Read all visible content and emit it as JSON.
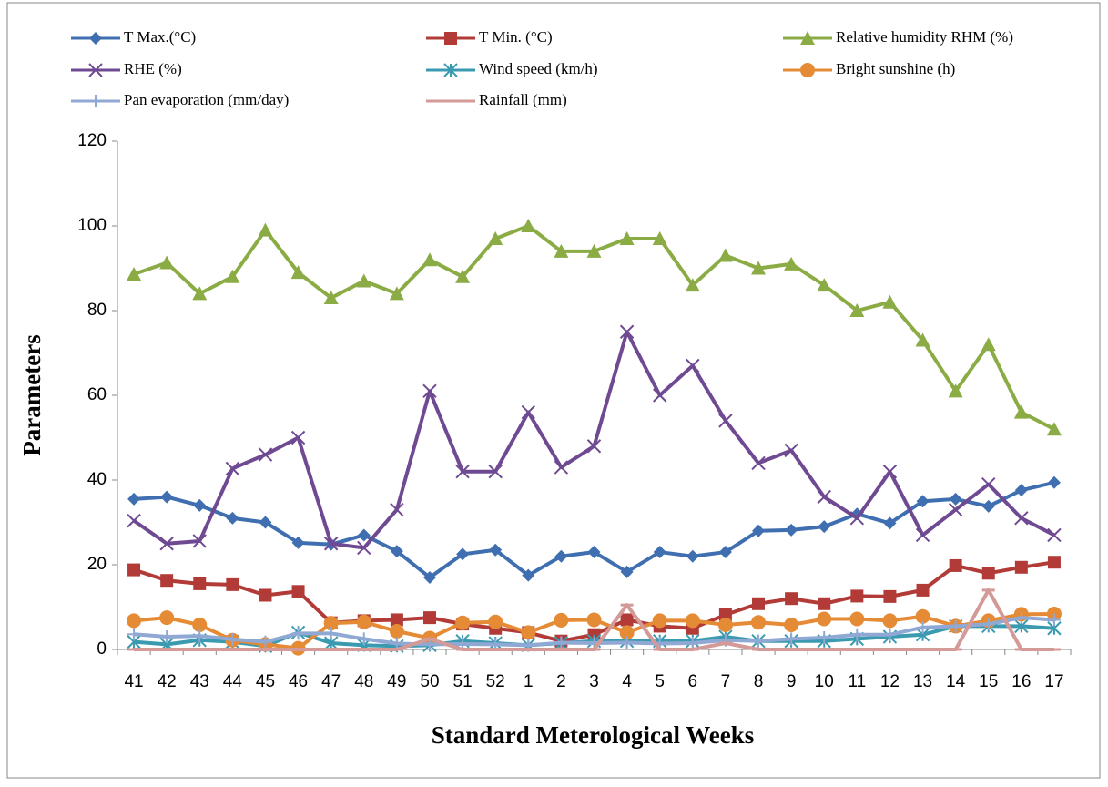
{
  "chart_data": {
    "type": "line",
    "y_label": "Parameters",
    "x_label": "Standard Meterological Weeks",
    "categories": [
      "41",
      "42",
      "43",
      "44",
      "45",
      "46",
      "47",
      "48",
      "49",
      "50",
      "51",
      "52",
      "1",
      "2",
      "3",
      "4",
      "5",
      "6",
      "7",
      "8",
      "9",
      "10",
      "11",
      "12",
      "13",
      "14",
      "15",
      "16",
      "17"
    ],
    "ylim": [
      0,
      120
    ],
    "yticks": [
      0,
      20,
      40,
      60,
      80,
      100,
      120
    ],
    "grid": false,
    "series": [
      {
        "name": "T Max.(°C)",
        "color": "#3f6fb0",
        "marker": "diamond",
        "values": [
          35.5,
          36,
          34,
          31,
          30,
          25.2,
          24.8,
          27,
          23.2,
          17,
          22.5,
          23.5,
          17.5,
          22,
          23,
          18.3,
          23,
          22,
          23,
          28,
          28.2,
          29,
          32,
          29.8,
          35,
          35.5,
          33.8,
          37.6,
          39.4
        ]
      },
      {
        "name": "T Min. (°C)",
        "color": "#b23b37",
        "marker": "square",
        "values": [
          18.8,
          16.3,
          15.5,
          15.3,
          12.8,
          13.7,
          6.3,
          6.8,
          7,
          7.5,
          6,
          5,
          4,
          2,
          3.5,
          7,
          5.5,
          5,
          8.2,
          10.8,
          12,
          10.8,
          12.6,
          12.5,
          14,
          19.8,
          18,
          19.4,
          20.6
        ]
      },
      {
        "name": "Relative humidity RHM (%)",
        "color": "#8bac45",
        "marker": "triangle",
        "values": [
          88.6,
          91.3,
          84,
          88,
          99,
          89,
          83,
          87,
          84,
          92,
          88,
          97,
          100,
          94,
          94,
          97,
          97,
          86,
          93,
          90,
          91,
          86,
          80,
          82,
          73,
          61,
          72,
          56,
          52
        ]
      },
      {
        "name": "RHE (%)",
        "color": "#6f4a92",
        "marker": "x",
        "values": [
          30.4,
          25,
          25.6,
          42.7,
          46,
          50,
          25,
          24,
          33,
          61,
          42,
          42,
          56,
          43,
          48,
          75,
          60,
          67,
          54,
          44,
          47,
          36,
          31,
          42,
          27,
          33,
          39,
          31,
          27
        ]
      },
      {
        "name": "Wind speed (km/h)",
        "color": "#3a9ab0",
        "marker": "star",
        "values": [
          1.8,
          1.2,
          2.2,
          1.8,
          0.8,
          4,
          1.5,
          1,
          0.8,
          1,
          2,
          1.5,
          1,
          1.5,
          2,
          2,
          2,
          2,
          3,
          2,
          2,
          2,
          2.5,
          3,
          3.5,
          5.5,
          5.5,
          5.5,
          5
        ]
      },
      {
        "name": "Bright sunshine (h)",
        "color": "#e58a35",
        "marker": "circle",
        "values": [
          6.8,
          7.5,
          5.8,
          2.2,
          1.2,
          0.3,
          6.2,
          6.5,
          4.3,
          2.7,
          6.3,
          6.5,
          4,
          6.9,
          7,
          4,
          6.8,
          6.8,
          5.8,
          6.4,
          5.8,
          7.2,
          7.2,
          6.8,
          7.8,
          5.5,
          6.8,
          8.3,
          8.4
        ]
      },
      {
        "name": "Pan evaporation (mm/day)",
        "color": "#90a8d4",
        "marker": "plus",
        "values": [
          3.6,
          3,
          3.2,
          2.4,
          1.8,
          3.8,
          3.8,
          2.5,
          1.4,
          1.2,
          1.3,
          1.2,
          1,
          1.6,
          1.5,
          1.6,
          1.4,
          1.5,
          2.2,
          2,
          2.5,
          2.8,
          3.5,
          3.5,
          5.2,
          5.5,
          6,
          7.5,
          7
        ]
      },
      {
        "name": "Rainfall (mm)",
        "color": "#d49a98",
        "marker": "dash",
        "values": [
          0,
          0,
          0,
          0,
          0,
          0,
          0,
          0,
          0,
          2.5,
          0,
          0,
          0,
          0,
          0,
          10.5,
          0,
          0,
          1.5,
          0,
          0,
          0,
          0,
          0,
          0,
          0,
          14,
          0,
          0
        ]
      }
    ]
  }
}
